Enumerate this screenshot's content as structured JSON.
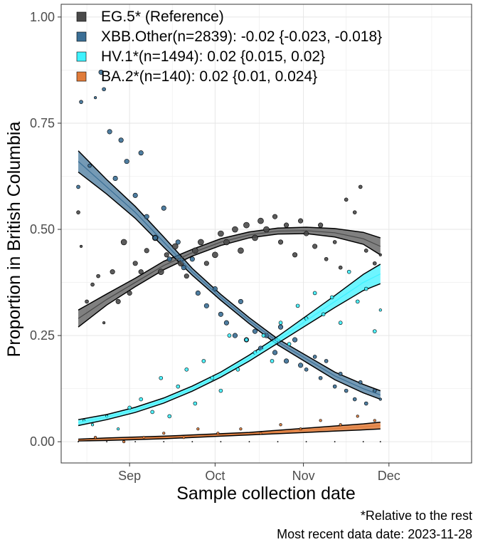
{
  "chart_data": {
    "type": "scatter",
    "xlabel": "Sample collection date",
    "ylabel": "Proportion in British Columbia",
    "x_range": [
      "2023-08-08",
      "2023-12-30"
    ],
    "ylim": [
      -0.05,
      1.03
    ],
    "x_ticks": [
      {
        "date": "2023-09-01",
        "label": "Sep"
      },
      {
        "date": "2023-10-01",
        "label": "Oct"
      },
      {
        "date": "2023-11-01",
        "label": "Nov"
      },
      {
        "date": "2023-12-01",
        "label": "Dec"
      }
    ],
    "y_ticks": [
      {
        "value": 0.0,
        "label": "0.00"
      },
      {
        "value": 0.25,
        "label": "0.25"
      },
      {
        "value": 0.5,
        "label": "0.50"
      },
      {
        "value": 0.75,
        "label": "0.75"
      },
      {
        "value": 1.0,
        "label": "1.00"
      }
    ],
    "grid": true,
    "legend_position": "top-left",
    "caption": [
      "*Relative to the rest",
      "Most recent data date: 2023-11-28"
    ],
    "series": [
      {
        "name": "EG.5* (Reference)",
        "color": "#4a4a4a",
        "fit_dates": [
          "2023-08-14",
          "2023-08-24",
          "2023-09-03",
          "2023-09-13",
          "2023-09-23",
          "2023-10-03",
          "2023-10-13",
          "2023-10-23",
          "2023-11-02",
          "2023-11-12",
          "2023-11-22",
          "2023-11-28"
        ],
        "fit": [
          0.29,
          0.335,
          0.375,
          0.415,
          0.445,
          0.47,
          0.487,
          0.496,
          0.497,
          0.492,
          0.478,
          0.46
        ],
        "lower": [
          0.27,
          0.322,
          0.365,
          0.405,
          0.437,
          0.462,
          0.48,
          0.489,
          0.49,
          0.482,
          0.465,
          0.44
        ],
        "upper": [
          0.31,
          0.348,
          0.385,
          0.425,
          0.453,
          0.478,
          0.494,
          0.503,
          0.505,
          0.502,
          0.493,
          0.48
        ],
        "points": [
          {
            "x": "2023-08-14",
            "y": 0.54,
            "n": 2
          },
          {
            "x": "2023-08-15",
            "y": 0.46,
            "n": 1
          },
          {
            "x": "2023-08-17",
            "y": 0.33,
            "n": 2
          },
          {
            "x": "2023-08-19",
            "y": 0.37,
            "n": 2
          },
          {
            "x": "2023-08-21",
            "y": 0.39,
            "n": 2
          },
          {
            "x": "2023-08-23",
            "y": 0.28,
            "n": 1
          },
          {
            "x": "2023-08-26",
            "y": 0.4,
            "n": 3
          },
          {
            "x": "2023-08-28",
            "y": 0.33,
            "n": 3
          },
          {
            "x": "2023-08-30",
            "y": 0.47,
            "n": 4
          },
          {
            "x": "2023-09-01",
            "y": 0.35,
            "n": 3
          },
          {
            "x": "2023-09-03",
            "y": 0.42,
            "n": 3
          },
          {
            "x": "2023-09-05",
            "y": 0.4,
            "n": 3
          },
          {
            "x": "2023-09-07",
            "y": 0.45,
            "n": 3
          },
          {
            "x": "2023-09-10",
            "y": 0.48,
            "n": 4
          },
          {
            "x": "2023-09-12",
            "y": 0.4,
            "n": 4
          },
          {
            "x": "2023-09-14",
            "y": 0.44,
            "n": 3
          },
          {
            "x": "2023-09-17",
            "y": 0.46,
            "n": 4
          },
          {
            "x": "2023-09-19",
            "y": 0.42,
            "n": 4
          },
          {
            "x": "2023-09-21",
            "y": 0.39,
            "n": 3
          },
          {
            "x": "2023-09-24",
            "y": 0.45,
            "n": 4
          },
          {
            "x": "2023-09-26",
            "y": 0.47,
            "n": 4
          },
          {
            "x": "2023-09-28",
            "y": 0.42,
            "n": 3
          },
          {
            "x": "2023-10-01",
            "y": 0.44,
            "n": 4
          },
          {
            "x": "2023-10-03",
            "y": 0.49,
            "n": 4
          },
          {
            "x": "2023-10-05",
            "y": 0.47,
            "n": 4
          },
          {
            "x": "2023-10-08",
            "y": 0.5,
            "n": 4
          },
          {
            "x": "2023-10-10",
            "y": 0.45,
            "n": 4
          },
          {
            "x": "2023-10-12",
            "y": 0.51,
            "n": 4
          },
          {
            "x": "2023-10-15",
            "y": 0.48,
            "n": 4
          },
          {
            "x": "2023-10-17",
            "y": 0.52,
            "n": 4
          },
          {
            "x": "2023-10-19",
            "y": 0.5,
            "n": 4
          },
          {
            "x": "2023-10-22",
            "y": 0.53,
            "n": 3
          },
          {
            "x": "2023-10-24",
            "y": 0.47,
            "n": 3
          },
          {
            "x": "2023-10-26",
            "y": 0.51,
            "n": 3
          },
          {
            "x": "2023-10-29",
            "y": 0.44,
            "n": 3
          },
          {
            "x": "2023-10-31",
            "y": 0.52,
            "n": 3
          },
          {
            "x": "2023-11-02",
            "y": 0.49,
            "n": 3
          },
          {
            "x": "2023-11-05",
            "y": 0.46,
            "n": 3
          },
          {
            "x": "2023-11-07",
            "y": 0.51,
            "n": 3
          },
          {
            "x": "2023-11-09",
            "y": 0.43,
            "n": 2
          },
          {
            "x": "2023-11-12",
            "y": 0.47,
            "n": 2
          },
          {
            "x": "2023-11-14",
            "y": 0.41,
            "n": 2
          },
          {
            "x": "2023-11-16",
            "y": 0.57,
            "n": 2
          },
          {
            "x": "2023-11-19",
            "y": 0.54,
            "n": 2
          },
          {
            "x": "2023-11-21",
            "y": 0.6,
            "n": 2
          },
          {
            "x": "2023-11-23",
            "y": 0.45,
            "n": 2
          },
          {
            "x": "2023-11-26",
            "y": 0.42,
            "n": 2
          },
          {
            "x": "2023-11-28",
            "y": 0.44,
            "n": 1
          }
        ]
      },
      {
        "name": "XBB.Other(n=2839): -0.02 {-0.023, -0.018}",
        "color": "#3b6f96",
        "fit_dates": [
          "2023-08-14",
          "2023-08-24",
          "2023-09-03",
          "2023-09-13",
          "2023-09-23",
          "2023-10-03",
          "2023-10-13",
          "2023-10-23",
          "2023-11-02",
          "2023-11-12",
          "2023-11-22",
          "2023-11-28"
        ],
        "fit": [
          0.66,
          0.6,
          0.54,
          0.47,
          0.4,
          0.34,
          0.285,
          0.235,
          0.195,
          0.155,
          0.125,
          0.11
        ],
        "lower": [
          0.635,
          0.583,
          0.526,
          0.458,
          0.392,
          0.333,
          0.278,
          0.228,
          0.187,
          0.146,
          0.115,
          0.1
        ],
        "upper": [
          0.685,
          0.617,
          0.554,
          0.482,
          0.408,
          0.347,
          0.292,
          0.242,
          0.203,
          0.164,
          0.135,
          0.12
        ],
        "points": [
          {
            "x": "2023-08-14",
            "y": 0.6,
            "n": 2
          },
          {
            "x": "2023-08-15",
            "y": 0.8,
            "n": 2
          },
          {
            "x": "2023-08-18",
            "y": 0.65,
            "n": 2
          },
          {
            "x": "2023-08-20",
            "y": 0.81,
            "n": 1
          },
          {
            "x": "2023-08-22",
            "y": 0.87,
            "n": 3
          },
          {
            "x": "2023-08-23",
            "y": 0.83,
            "n": 2
          },
          {
            "x": "2023-08-25",
            "y": 0.73,
            "n": 3
          },
          {
            "x": "2023-08-27",
            "y": 0.62,
            "n": 3
          },
          {
            "x": "2023-08-29",
            "y": 0.71,
            "n": 3
          },
          {
            "x": "2023-08-31",
            "y": 0.66,
            "n": 3
          },
          {
            "x": "2023-09-03",
            "y": 0.58,
            "n": 3
          },
          {
            "x": "2023-09-05",
            "y": 0.68,
            "n": 3
          },
          {
            "x": "2023-09-07",
            "y": 0.53,
            "n": 3
          },
          {
            "x": "2023-09-10",
            "y": 0.48,
            "n": 3
          },
          {
            "x": "2023-09-13",
            "y": 0.55,
            "n": 3
          },
          {
            "x": "2023-09-15",
            "y": 0.43,
            "n": 3
          },
          {
            "x": "2023-09-18",
            "y": 0.47,
            "n": 3
          },
          {
            "x": "2023-09-20",
            "y": 0.41,
            "n": 3
          },
          {
            "x": "2023-09-23",
            "y": 0.43,
            "n": 3
          },
          {
            "x": "2023-09-25",
            "y": 0.35,
            "n": 3
          },
          {
            "x": "2023-09-28",
            "y": 0.32,
            "n": 3
          },
          {
            "x": "2023-10-01",
            "y": 0.36,
            "n": 3
          },
          {
            "x": "2023-10-03",
            "y": 0.3,
            "n": 3
          },
          {
            "x": "2023-10-05",
            "y": 0.28,
            "n": 3
          },
          {
            "x": "2023-10-08",
            "y": 0.25,
            "n": 3
          },
          {
            "x": "2023-10-10",
            "y": 0.33,
            "n": 3
          },
          {
            "x": "2023-10-12",
            "y": 0.24,
            "n": 3
          },
          {
            "x": "2023-10-15",
            "y": 0.26,
            "n": 3
          },
          {
            "x": "2023-10-17",
            "y": 0.22,
            "n": 3
          },
          {
            "x": "2023-10-19",
            "y": 0.25,
            "n": 3
          },
          {
            "x": "2023-10-22",
            "y": 0.21,
            "n": 3
          },
          {
            "x": "2023-10-24",
            "y": 0.27,
            "n": 3
          },
          {
            "x": "2023-10-26",
            "y": 0.19,
            "n": 3
          },
          {
            "x": "2023-10-29",
            "y": 0.24,
            "n": 3
          },
          {
            "x": "2023-10-31",
            "y": 0.18,
            "n": 3
          },
          {
            "x": "2023-11-02",
            "y": 0.17,
            "n": 2
          },
          {
            "x": "2023-11-05",
            "y": 0.2,
            "n": 2
          },
          {
            "x": "2023-11-07",
            "y": 0.15,
            "n": 2
          },
          {
            "x": "2023-11-09",
            "y": 0.19,
            "n": 2
          },
          {
            "x": "2023-11-12",
            "y": 0.13,
            "n": 2
          },
          {
            "x": "2023-11-14",
            "y": 0.16,
            "n": 2
          },
          {
            "x": "2023-11-16",
            "y": 0.12,
            "n": 2
          },
          {
            "x": "2023-11-19",
            "y": 0.1,
            "n": 2
          },
          {
            "x": "2023-11-21",
            "y": 0.14,
            "n": 2
          },
          {
            "x": "2023-11-23",
            "y": 0.09,
            "n": 2
          },
          {
            "x": "2023-11-26",
            "y": 0.12,
            "n": 2
          },
          {
            "x": "2023-11-28",
            "y": 0.1,
            "n": 1
          }
        ]
      },
      {
        "name": "HV.1*(n=1494): 0.02 {0.015, 0.02}",
        "color": "#3ef2ff",
        "fit_dates": [
          "2023-08-14",
          "2023-08-24",
          "2023-09-03",
          "2023-09-13",
          "2023-09-23",
          "2023-10-03",
          "2023-10-13",
          "2023-10-23",
          "2023-11-02",
          "2023-11-12",
          "2023-11-22",
          "2023-11-28"
        ],
        "fit": [
          0.045,
          0.058,
          0.075,
          0.097,
          0.125,
          0.158,
          0.197,
          0.24,
          0.285,
          0.33,
          0.375,
          0.395
        ],
        "lower": [
          0.038,
          0.052,
          0.069,
          0.091,
          0.119,
          0.152,
          0.19,
          0.232,
          0.274,
          0.316,
          0.356,
          0.372
        ],
        "upper": [
          0.052,
          0.064,
          0.081,
          0.103,
          0.131,
          0.164,
          0.204,
          0.248,
          0.296,
          0.344,
          0.394,
          0.418
        ],
        "points": [
          {
            "x": "2023-08-16",
            "y": 0.05,
            "n": 1
          },
          {
            "x": "2023-08-19",
            "y": 0.04,
            "n": 1
          },
          {
            "x": "2023-08-24",
            "y": 0.06,
            "n": 1
          },
          {
            "x": "2023-08-28",
            "y": 0.03,
            "n": 1
          },
          {
            "x": "2023-09-01",
            "y": 0.08,
            "n": 2
          },
          {
            "x": "2023-09-05",
            "y": 0.1,
            "n": 2
          },
          {
            "x": "2023-09-09",
            "y": 0.07,
            "n": 2
          },
          {
            "x": "2023-09-12",
            "y": 0.15,
            "n": 2
          },
          {
            "x": "2023-09-15",
            "y": 0.06,
            "n": 2
          },
          {
            "x": "2023-09-18",
            "y": 0.13,
            "n": 2
          },
          {
            "x": "2023-09-21",
            "y": 0.17,
            "n": 2
          },
          {
            "x": "2023-09-24",
            "y": 0.09,
            "n": 2
          },
          {
            "x": "2023-09-27",
            "y": 0.19,
            "n": 2
          },
          {
            "x": "2023-09-30",
            "y": 0.15,
            "n": 2
          },
          {
            "x": "2023-10-03",
            "y": 0.12,
            "n": 2
          },
          {
            "x": "2023-10-06",
            "y": 0.25,
            "n": 2
          },
          {
            "x": "2023-10-09",
            "y": 0.17,
            "n": 2
          },
          {
            "x": "2023-10-12",
            "y": 0.24,
            "n": 2
          },
          {
            "x": "2023-10-15",
            "y": 0.21,
            "n": 2
          },
          {
            "x": "2023-10-18",
            "y": 0.25,
            "n": 2
          },
          {
            "x": "2023-10-21",
            "y": 0.19,
            "n": 2
          },
          {
            "x": "2023-10-24",
            "y": 0.28,
            "n": 2
          },
          {
            "x": "2023-10-27",
            "y": 0.23,
            "n": 2
          },
          {
            "x": "2023-10-30",
            "y": 0.32,
            "n": 2
          },
          {
            "x": "2023-11-02",
            "y": 0.29,
            "n": 2
          },
          {
            "x": "2023-11-05",
            "y": 0.35,
            "n": 2
          },
          {
            "x": "2023-11-08",
            "y": 0.3,
            "n": 2
          },
          {
            "x": "2023-11-11",
            "y": 0.34,
            "n": 2
          },
          {
            "x": "2023-11-14",
            "y": 0.28,
            "n": 2
          },
          {
            "x": "2023-11-17",
            "y": 0.4,
            "n": 2
          },
          {
            "x": "2023-11-20",
            "y": 0.33,
            "n": 2
          },
          {
            "x": "2023-11-23",
            "y": 0.36,
            "n": 2
          },
          {
            "x": "2023-11-26",
            "y": 0.26,
            "n": 2
          },
          {
            "x": "2023-11-28",
            "y": 0.31,
            "n": 1
          }
        ]
      },
      {
        "name": "BA.2*(n=140): 0.02 {0.01, 0.024}",
        "color": "#e07b39",
        "fit_dates": [
          "2023-08-14",
          "2023-08-24",
          "2023-09-03",
          "2023-09-13",
          "2023-09-23",
          "2023-10-03",
          "2023-10-13",
          "2023-10-23",
          "2023-11-02",
          "2023-11-12",
          "2023-11-22",
          "2023-11-28"
        ],
        "fit": [
          0.004,
          0.006,
          0.008,
          0.01,
          0.013,
          0.016,
          0.019,
          0.023,
          0.027,
          0.031,
          0.035,
          0.038
        ],
        "lower": [
          0.002,
          0.003,
          0.005,
          0.007,
          0.01,
          0.013,
          0.016,
          0.019,
          0.022,
          0.025,
          0.028,
          0.03
        ],
        "upper": [
          0.006,
          0.009,
          0.011,
          0.013,
          0.016,
          0.019,
          0.022,
          0.027,
          0.032,
          0.037,
          0.042,
          0.046
        ],
        "points": [
          {
            "x": "2023-08-20",
            "y": 0.01,
            "n": 1
          },
          {
            "x": "2023-08-30",
            "y": 0.0,
            "n": 1
          },
          {
            "x": "2023-09-06",
            "y": 0.01,
            "n": 1
          },
          {
            "x": "2023-09-13",
            "y": 0.02,
            "n": 1
          },
          {
            "x": "2023-09-20",
            "y": 0.01,
            "n": 1
          },
          {
            "x": "2023-09-25",
            "y": 0.03,
            "n": 1
          },
          {
            "x": "2023-10-02",
            "y": 0.02,
            "n": 1
          },
          {
            "x": "2023-10-10",
            "y": 0.03,
            "n": 1
          },
          {
            "x": "2023-10-17",
            "y": 0.02,
            "n": 1
          },
          {
            "x": "2023-10-24",
            "y": 0.04,
            "n": 1
          },
          {
            "x": "2023-10-31",
            "y": 0.03,
            "n": 1
          },
          {
            "x": "2023-11-07",
            "y": 0.05,
            "n": 1
          },
          {
            "x": "2023-11-14",
            "y": 0.04,
            "n": 1
          },
          {
            "x": "2023-11-20",
            "y": 0.06,
            "n": 1
          },
          {
            "x": "2023-11-26",
            "y": 0.05,
            "n": 1
          }
        ]
      }
    ]
  }
}
